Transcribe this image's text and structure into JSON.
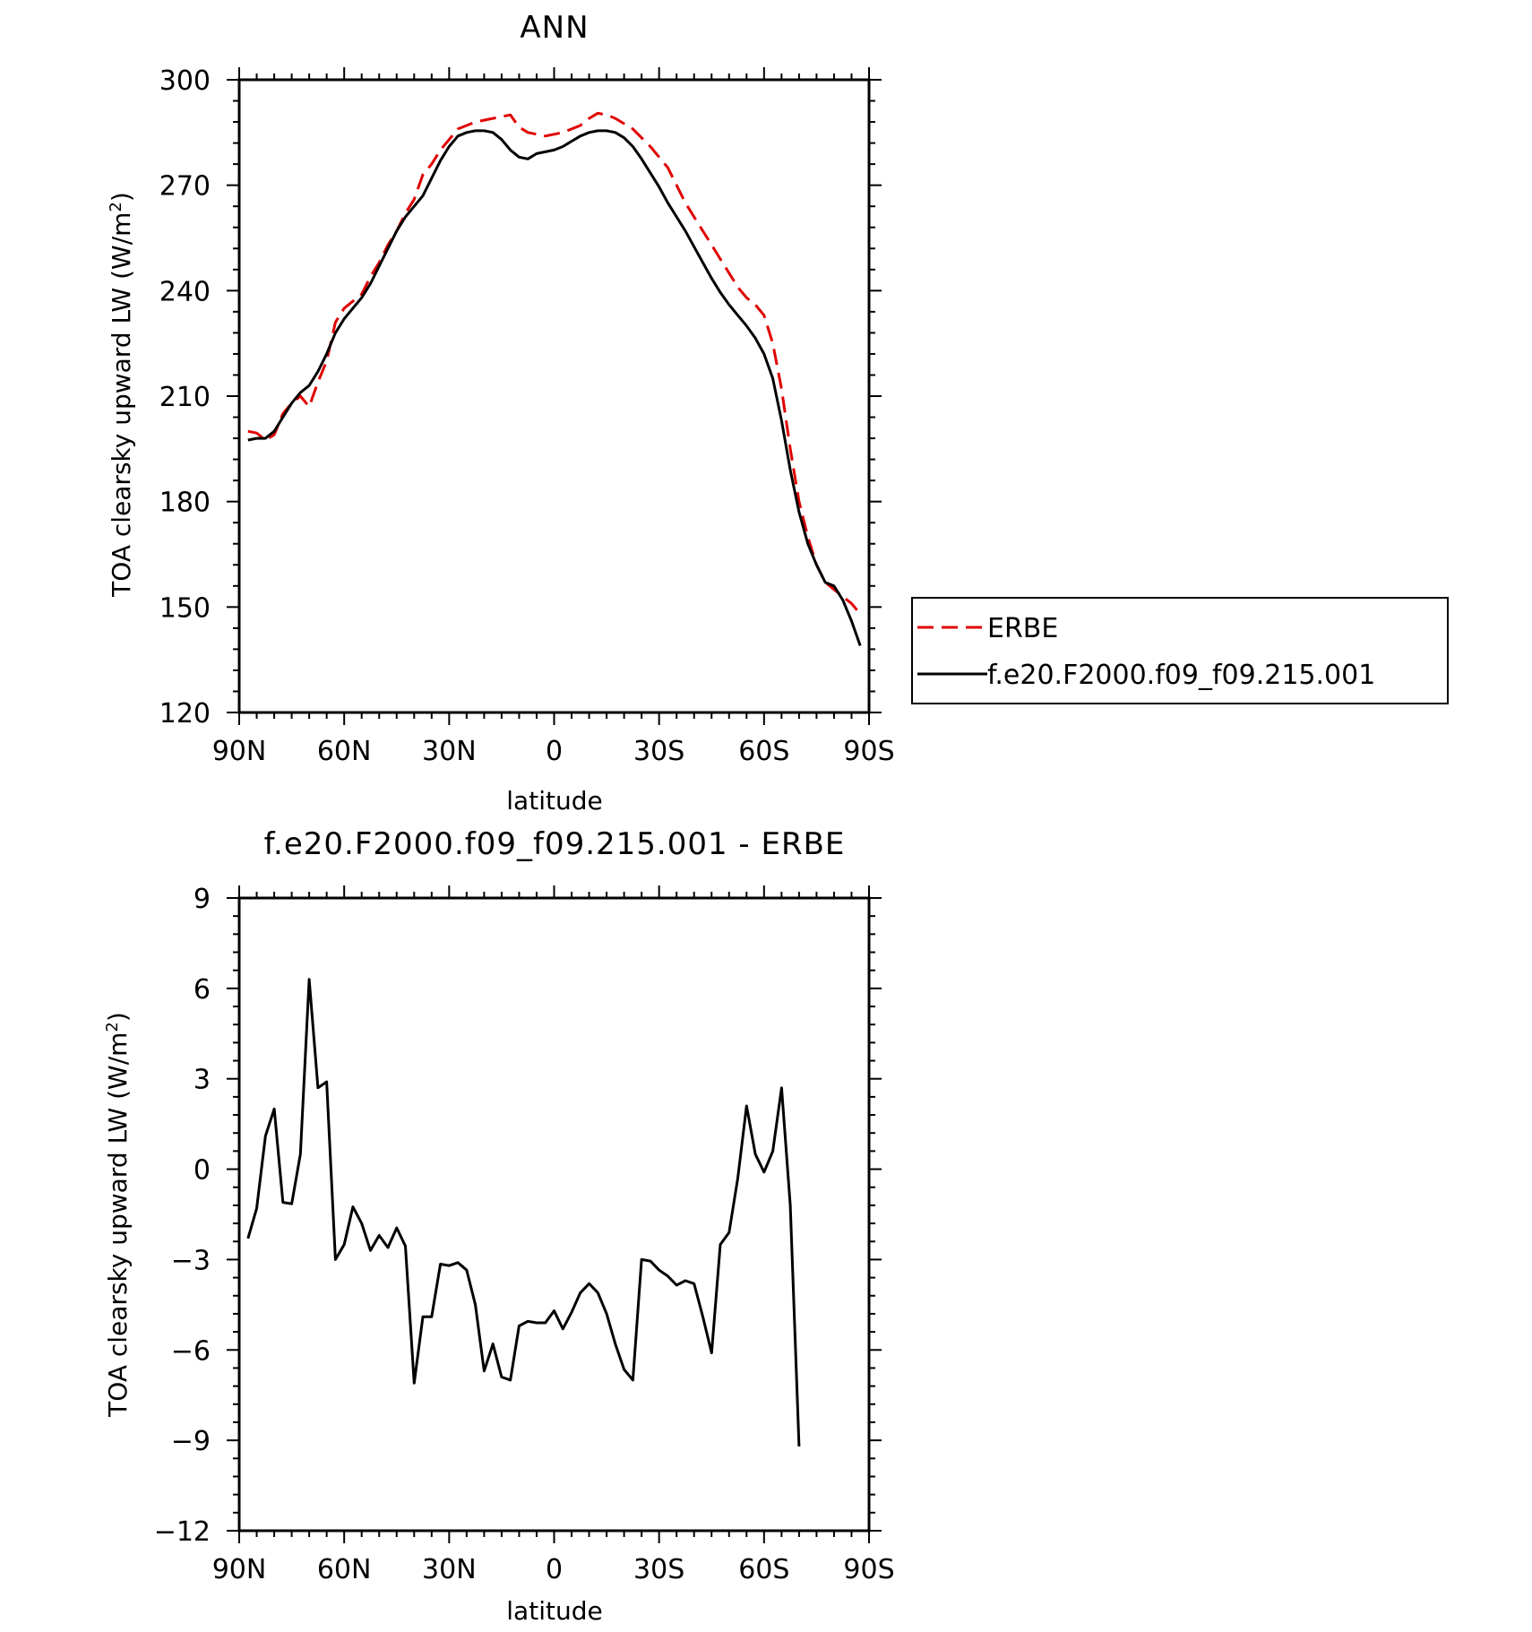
{
  "chart_data": [
    {
      "type": "line",
      "title": "ANN",
      "xlabel": "latitude",
      "ylabel": "TOA clearsky upward LW (W/m",
      "ylabel_sup": "2",
      "ylabel_close": ")",
      "xlim": [
        90,
        -90
      ],
      "ylim": [
        120,
        300
      ],
      "x_ticks": [
        {
          "v": 90,
          "label": "90N"
        },
        {
          "v": 60,
          "label": "60N"
        },
        {
          "v": 30,
          "label": "30N"
        },
        {
          "v": 0,
          "label": "0"
        },
        {
          "v": -30,
          "label": "30S"
        },
        {
          "v": -60,
          "label": "60S"
        },
        {
          "v": -90,
          "label": "90S"
        }
      ],
      "y_ticks": [
        {
          "v": 120,
          "label": "120"
        },
        {
          "v": 150,
          "label": "150"
        },
        {
          "v": 180,
          "label": "180"
        },
        {
          "v": 210,
          "label": "210"
        },
        {
          "v": 240,
          "label": "240"
        },
        {
          "v": 270,
          "label": "270"
        },
        {
          "v": 300,
          "label": "300"
        }
      ],
      "legend_position": "right, outside plot",
      "series": [
        {
          "name": "ERBE",
          "color": "#e00000",
          "dash": "dashed",
          "points": [
            [
              87.5,
              200
            ],
            [
              85,
              199.5
            ],
            [
              82.5,
              197.5
            ],
            [
              80,
              199
            ],
            [
              77.5,
              205
            ],
            [
              75,
              208
            ],
            [
              72.5,
              210
            ],
            [
              70,
              207
            ],
            [
              67.5,
              214
            ],
            [
              65,
              220
            ],
            [
              62.5,
              231
            ],
            [
              60,
              235
            ],
            [
              57.5,
              237
            ],
            [
              55,
              239
            ],
            [
              52.5,
              244
            ],
            [
              50,
              248
            ],
            [
              47.5,
              253
            ],
            [
              45,
              257
            ],
            [
              42.5,
              262
            ],
            [
              40,
              266
            ],
            [
              37.5,
              273
            ],
            [
              35,
              276
            ],
            [
              32.5,
              280
            ],
            [
              30,
              283
            ],
            [
              27.5,
              286
            ],
            [
              25,
              287
            ],
            [
              22.5,
              288
            ],
            [
              20,
              288.5
            ],
            [
              17.5,
              289
            ],
            [
              15,
              289.5
            ],
            [
              12.5,
              290
            ],
            [
              10,
              286.5
            ],
            [
              7.5,
              285
            ],
            [
              5,
              284.5
            ],
            [
              2.5,
              284
            ],
            [
              0,
              284.5
            ],
            [
              -2.5,
              285
            ],
            [
              -5,
              286
            ],
            [
              -7.5,
              287
            ],
            [
              -10,
              289
            ],
            [
              -12.5,
              290.5
            ],
            [
              -15,
              290
            ],
            [
              -17.5,
              289
            ],
            [
              -20,
              287.5
            ],
            [
              -22.5,
              286
            ],
            [
              -25,
              283.5
            ],
            [
              -27.5,
              281
            ],
            [
              -30,
              278
            ],
            [
              -32.5,
              275
            ],
            [
              -35,
              270
            ],
            [
              -37.5,
              265
            ],
            [
              -40,
              261
            ],
            [
              -42.5,
              257
            ],
            [
              -45,
              253
            ],
            [
              -47.5,
              249
            ],
            [
              -50,
              245
            ],
            [
              -52.5,
              241
            ],
            [
              -55,
              238
            ],
            [
              -57.5,
              236
            ],
            [
              -60,
              233
            ],
            [
              -62.5,
              225
            ],
            [
              -65,
              212
            ],
            [
              -67.5,
              195
            ],
            [
              -70,
              180
            ],
            [
              -72.5,
              170
            ],
            [
              -75,
              162
            ],
            [
              -77.5,
              157
            ],
            [
              -80,
              155
            ],
            [
              -82.5,
              153
            ],
            [
              -85,
              151
            ],
            [
              -87.5,
              148
            ]
          ]
        },
        {
          "name": "f.e20.F2000.f09_f09.215.001",
          "color": "#000000",
          "dash": "solid",
          "points": [
            [
              87.5,
              197.5
            ],
            [
              85,
              198
            ],
            [
              82.5,
              198
            ],
            [
              80,
              200
            ],
            [
              77.5,
              204
            ],
            [
              75,
              208
            ],
            [
              72.5,
              211
            ],
            [
              70,
              213
            ],
            [
              67.5,
              217
            ],
            [
              65,
              222
            ],
            [
              62.5,
              228
            ],
            [
              60,
              232
            ],
            [
              57.5,
              235
            ],
            [
              55,
              238
            ],
            [
              52.5,
              242
            ],
            [
              50,
              247
            ],
            [
              47.5,
              252
            ],
            [
              45,
              257
            ],
            [
              42.5,
              261
            ],
            [
              40,
              264
            ],
            [
              37.5,
              267
            ],
            [
              35,
              272
            ],
            [
              32.5,
              277
            ],
            [
              30,
              281
            ],
            [
              27.5,
              284
            ],
            [
              25,
              285
            ],
            [
              22.5,
              285.5
            ],
            [
              20,
              285.5
            ],
            [
              17.5,
              285
            ],
            [
              15,
              283
            ],
            [
              12.5,
              280
            ],
            [
              10,
              278
            ],
            [
              7.5,
              277.5
            ],
            [
              5,
              279
            ],
            [
              2.5,
              279.5
            ],
            [
              0,
              280
            ],
            [
              -2.5,
              281
            ],
            [
              -5,
              282.5
            ],
            [
              -7.5,
              284
            ],
            [
              -10,
              285
            ],
            [
              -12.5,
              285.5
            ],
            [
              -15,
              285.5
            ],
            [
              -17.5,
              285
            ],
            [
              -20,
              283.5
            ],
            [
              -22.5,
              281
            ],
            [
              -25,
              277.5
            ],
            [
              -27.5,
              273.5
            ],
            [
              -30,
              269.5
            ],
            [
              -32.5,
              265
            ],
            [
              -35,
              261
            ],
            [
              -37.5,
              257
            ],
            [
              -40,
              252.5
            ],
            [
              -42.5,
              248
            ],
            [
              -45,
              243.5
            ],
            [
              -47.5,
              239.5
            ],
            [
              -50,
              236
            ],
            [
              -52.5,
              233
            ],
            [
              -55,
              230
            ],
            [
              -57.5,
              226.5
            ],
            [
              -60,
              222
            ],
            [
              -62.5,
              215
            ],
            [
              -65,
              203
            ],
            [
              -67.5,
              189
            ],
            [
              -70,
              177
            ],
            [
              -72.5,
              168
            ],
            [
              -75,
              162
            ],
            [
              -77.5,
              157
            ],
            [
              -80,
              156
            ],
            [
              -82.5,
              152
            ],
            [
              -85,
              146
            ],
            [
              -87.5,
              139
            ]
          ]
        }
      ]
    },
    {
      "type": "line",
      "title": "f.e20.F2000.f09_f09.215.001 - ERBE",
      "xlabel": "latitude",
      "ylabel": "TOA clearsky upward LW (W/m",
      "ylabel_sup": "2",
      "ylabel_close": ")",
      "xlim": [
        90,
        -90
      ],
      "ylim": [
        -12,
        9
      ],
      "x_ticks": [
        {
          "v": 90,
          "label": "90N"
        },
        {
          "v": 60,
          "label": "60N"
        },
        {
          "v": 30,
          "label": "30N"
        },
        {
          "v": 0,
          "label": "0"
        },
        {
          "v": -30,
          "label": "30S"
        },
        {
          "v": -60,
          "label": "60S"
        },
        {
          "v": -90,
          "label": "90S"
        }
      ],
      "y_ticks": [
        {
          "v": -12,
          "label": "−12"
        },
        {
          "v": -9,
          "label": "−9"
        },
        {
          "v": -6,
          "label": "−6"
        },
        {
          "v": -3,
          "label": "−3"
        },
        {
          "v": 0,
          "label": "0"
        },
        {
          "v": 3,
          "label": "3"
        },
        {
          "v": 6,
          "label": "6"
        },
        {
          "v": 9,
          "label": "9"
        }
      ],
      "series": [
        {
          "color": "#000000",
          "dash": "solid",
          "points": [
            [
              87.5,
              -2.3
            ],
            [
              85,
              -1.3
            ],
            [
              82.5,
              1.1
            ],
            [
              80,
              2.0
            ],
            [
              77.5,
              -1.1
            ],
            [
              75,
              -1.15
            ],
            [
              72.5,
              0.5
            ],
            [
              70,
              6.3
            ],
            [
              67.5,
              2.7
            ],
            [
              65,
              2.9
            ],
            [
              62.5,
              -3.0
            ],
            [
              60,
              -2.5
            ],
            [
              57.5,
              -1.25
            ],
            [
              55,
              -1.8
            ],
            [
              52.5,
              -2.7
            ],
            [
              50,
              -2.2
            ],
            [
              47.5,
              -2.6
            ],
            [
              45,
              -1.95
            ],
            [
              42.5,
              -2.55
            ],
            [
              40,
              -7.1
            ],
            [
              37.5,
              -4.9
            ],
            [
              35,
              -4.9
            ],
            [
              32.5,
              -3.15
            ],
            [
              30,
              -3.2
            ],
            [
              27.5,
              -3.1
            ],
            [
              25,
              -3.35
            ],
            [
              22.5,
              -4.5
            ],
            [
              20,
              -6.7
            ],
            [
              17.5,
              -5.8
            ],
            [
              15,
              -6.9
            ],
            [
              12.5,
              -7.0
            ],
            [
              10,
              -5.2
            ],
            [
              7.5,
              -5.05
            ],
            [
              5,
              -5.1
            ],
            [
              2.5,
              -5.1
            ],
            [
              0,
              -4.7
            ],
            [
              -2.5,
              -5.3
            ],
            [
              -5,
              -4.75
            ],
            [
              -7.5,
              -4.1
            ],
            [
              -10,
              -3.8
            ],
            [
              -12.5,
              -4.1
            ],
            [
              -15,
              -4.8
            ],
            [
              -17.5,
              -5.8
            ],
            [
              -20,
              -6.65
            ],
            [
              -22.5,
              -7.0
            ],
            [
              -25,
              -3.0
            ],
            [
              -27.5,
              -3.05
            ],
            [
              -30,
              -3.35
            ],
            [
              -32.5,
              -3.55
            ],
            [
              -35,
              -3.85
            ],
            [
              -37.5,
              -3.7
            ],
            [
              -40,
              -3.8
            ],
            [
              -42.5,
              -4.9
            ],
            [
              -45,
              -6.1
            ],
            [
              -47.5,
              -2.5
            ],
            [
              -50,
              -2.1
            ],
            [
              -52.5,
              -0.3
            ],
            [
              -55,
              2.1
            ],
            [
              -57.5,
              0.5
            ],
            [
              -60,
              -0.1
            ],
            [
              -62.5,
              0.6
            ],
            [
              -65,
              2.7
            ],
            [
              -67.5,
              -1.2
            ],
            [
              -70,
              -9.2
            ]
          ]
        }
      ]
    }
  ]
}
